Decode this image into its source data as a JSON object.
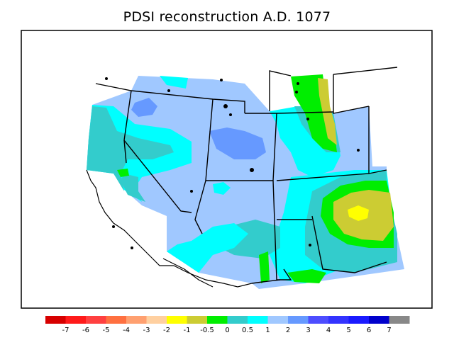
{
  "title": "PDSI reconstruction A.D. 1077",
  "legend": {
    "colors": [
      "#d70000",
      "#ff1a1a",
      "#ff4040",
      "#ff7040",
      "#ffa070",
      "#ffd0a0",
      "#ffff00",
      "#cccc33",
      "#00ee00",
      "#33cccc",
      "#00ffff",
      "#a0c8ff",
      "#6699ff",
      "#4d4dff",
      "#3333ff",
      "#1a1aff",
      "#0000cc",
      "#888888"
    ],
    "labels": [
      "-7",
      "-6",
      "-5",
      "-4",
      "-3",
      "-2",
      "-1",
      "-0.5",
      "0",
      "0.5",
      "1",
      "2",
      "3",
      "4",
      "5",
      "6",
      "7"
    ]
  }
}
